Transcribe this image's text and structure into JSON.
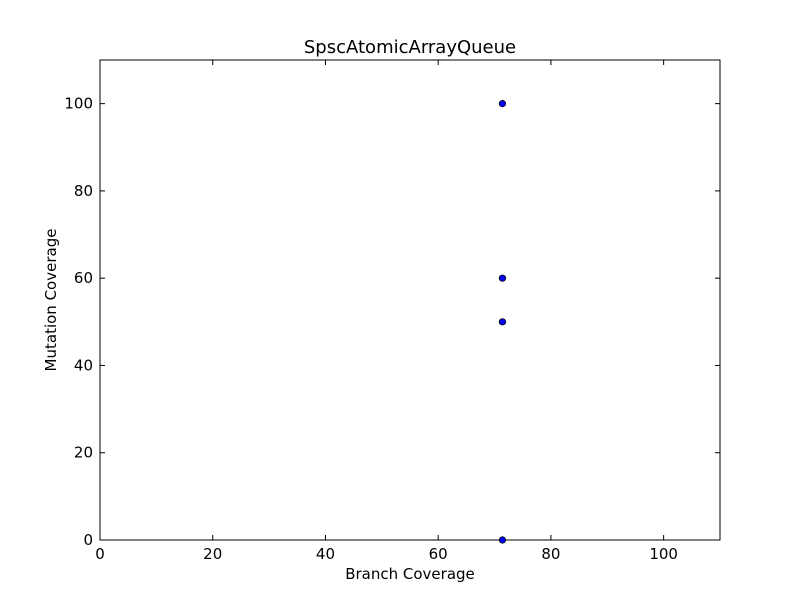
{
  "chart_data": {
    "type": "scatter",
    "title": "SpscAtomicArrayQueue",
    "xlabel": "Branch Coverage",
    "ylabel": "Mutation Coverage",
    "xlim": [
      0,
      110
    ],
    "ylim": [
      0,
      110
    ],
    "xticks": [
      0,
      20,
      40,
      60,
      80,
      100
    ],
    "yticks": [
      0,
      20,
      40,
      60,
      80,
      100
    ],
    "grid": false,
    "marker_color": "#0000ff",
    "points": [
      {
        "x": 71.4,
        "y": 100
      },
      {
        "x": 71.4,
        "y": 60
      },
      {
        "x": 71.4,
        "y": 50
      },
      {
        "x": 71.4,
        "y": 0
      }
    ]
  }
}
